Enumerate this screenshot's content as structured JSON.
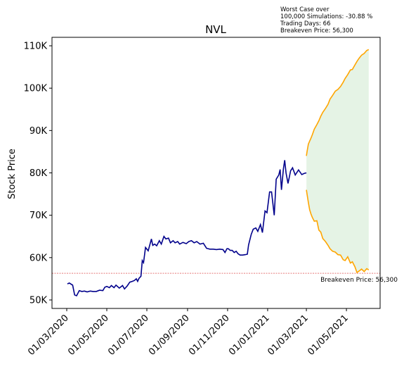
{
  "chart_data": {
    "type": "line",
    "title": "NVL",
    "xlabel": "",
    "ylabel": "Stock Price",
    "ylim": [
      48000,
      112000
    ],
    "y_ticks": [
      50000,
      60000,
      70000,
      80000,
      90000,
      100000,
      110000
    ],
    "y_tick_labels": [
      "50K",
      "60K",
      "70K",
      "80K",
      "90K",
      "100K",
      "110K"
    ],
    "x_tick_labels": [
      "01/03/2020",
      "01/05/2020",
      "01/07/2020",
      "01/09/2020",
      "01/11/2020",
      "01/01/2021",
      "01/03/2021",
      "01/05/2021"
    ],
    "grid": false,
    "annotation": {
      "lines": [
        "Worst Case over",
        "100,000 Simulations: -30.88 %",
        "Trading Days: 66",
        "Breakeven Price: 56,300"
      ]
    },
    "breakeven": {
      "value": 56300,
      "label": "Breakeven Price: 56,300",
      "color": "#d62728"
    },
    "colors": {
      "history": "#00008b",
      "forecast": "#ffa500",
      "fill": "#2ca02c"
    },
    "series": [
      {
        "x": [
          "2020-03-02",
          "2020-03-05",
          "2020-03-10",
          "2020-03-13",
          "2020-03-16",
          "2020-03-20",
          "2020-03-24",
          "2020-03-28",
          "2020-04-01",
          "2020-04-06",
          "2020-04-10",
          "2020-04-15",
          "2020-04-20",
          "2020-04-25",
          "2020-04-28",
          "2020-05-01",
          "2020-05-05",
          "2020-05-08",
          "2020-05-12",
          "2020-05-15",
          "2020-05-20",
          "2020-05-25",
          "2020-05-28",
          "2020-06-01",
          "2020-06-05",
          "2020-06-09",
          "2020-06-12",
          "2020-06-15",
          "2020-06-17",
          "2020-06-19",
          "2020-06-22",
          "2020-06-24",
          "2020-06-26",
          "2020-06-29",
          "2020-07-01",
          "2020-07-03",
          "2020-07-06",
          "2020-07-08",
          "2020-07-10",
          "2020-07-13",
          "2020-07-16",
          "2020-07-20",
          "2020-07-23",
          "2020-07-27",
          "2020-07-30",
          "2020-08-03",
          "2020-08-06",
          "2020-08-10",
          "2020-08-13",
          "2020-08-17",
          "2020-08-20",
          "2020-08-25",
          "2020-08-30",
          "2020-09-03",
          "2020-09-07",
          "2020-09-11",
          "2020-09-15",
          "2020-09-20",
          "2020-09-25",
          "2020-09-30",
          "2020-10-05",
          "2020-10-10",
          "2020-10-15",
          "2020-10-20",
          "2020-10-25",
          "2020-10-28",
          "2020-10-31",
          "2020-11-02",
          "2020-11-05",
          "2020-11-08",
          "2020-11-11",
          "2020-11-14",
          "2020-11-17",
          "2020-11-20",
          "2020-11-24",
          "2020-11-28",
          "2020-12-01",
          "2020-12-03",
          "2020-12-07",
          "2020-12-10",
          "2020-12-14",
          "2020-12-17",
          "2020-12-21",
          "2020-12-24",
          "2020-12-28",
          "2020-12-31",
          "2021-01-04",
          "2021-01-07",
          "2021-01-11",
          "2021-01-14",
          "2021-01-18",
          "2021-01-20",
          "2021-01-22",
          "2021-01-25",
          "2021-01-27",
          "2021-01-29",
          "2021-02-01",
          "2021-02-03",
          "2021-02-05",
          "2021-02-08",
          "2021-02-12",
          "2021-02-17",
          "2021-02-22",
          "2021-02-26",
          "2021-03-01"
        ],
        "values": [
          53800,
          54000,
          53500,
          51200,
          51000,
          52200,
          52000,
          52100,
          51900,
          52100,
          52000,
          52000,
          52300,
          52200,
          53000,
          53200,
          52900,
          53400,
          52900,
          53500,
          52800,
          53400,
          52600,
          53300,
          54200,
          54400,
          54600,
          55000,
          54400,
          55100,
          55600,
          59300,
          58800,
          62400,
          62000,
          61600,
          63300,
          64400,
          62900,
          63200,
          62800,
          64000,
          63200,
          65000,
          64400,
          64600,
          63500,
          64000,
          63500,
          63800,
          63200,
          63600,
          63300,
          63800,
          64000,
          63500,
          63800,
          63200,
          63400,
          62200,
          62000,
          62000,
          61900,
          62000,
          61900,
          61200,
          62100,
          62100,
          61700,
          61700,
          61200,
          61500,
          60900,
          60600,
          60600,
          60700,
          60800,
          63000,
          65500,
          66700,
          67000,
          66200,
          67800,
          65900,
          71000,
          70600,
          75500,
          75500,
          70000,
          78500,
          79500,
          80800,
          76000,
          81000,
          83000,
          80000,
          77500,
          79000,
          80500,
          81200,
          79500,
          80700,
          79600,
          79900,
          80000
        ],
        "name": ""
      },
      {
        "x": [
          "2021-03-01",
          "2021-03-02",
          "2021-03-04",
          "2021-03-06",
          "2021-03-08",
          "2021-03-10",
          "2021-03-13",
          "2021-03-17",
          "2021-03-20",
          "2021-03-23",
          "2021-03-26",
          "2021-03-30",
          "2021-04-03",
          "2021-04-06",
          "2021-04-10",
          "2021-04-14",
          "2021-04-18",
          "2021-04-22",
          "2021-04-26",
          "2021-04-29",
          "2021-05-03",
          "2021-05-07",
          "2021-05-10",
          "2021-05-14",
          "2021-05-17",
          "2021-05-20",
          "2021-05-24",
          "2021-05-28",
          "2021-06-01",
          "2021-06-04"
        ],
        "values": [
          84000,
          85000,
          86800,
          87500,
          88200,
          89000,
          90300,
          91400,
          92300,
          93400,
          94300,
          95200,
          96200,
          97400,
          98300,
          99300,
          99700,
          100400,
          101400,
          102300,
          103200,
          104300,
          104400,
          105500,
          106300,
          107000,
          107800,
          108200,
          108900,
          109100
        ],
        "name": ""
      },
      {
        "x": [
          "2021-03-01",
          "2021-03-02",
          "2021-03-04",
          "2021-03-06",
          "2021-03-08",
          "2021-03-10",
          "2021-03-13",
          "2021-03-17",
          "2021-03-20",
          "2021-03-23",
          "2021-03-26",
          "2021-03-30",
          "2021-04-03",
          "2021-04-06",
          "2021-04-10",
          "2021-04-14",
          "2021-04-18",
          "2021-04-22",
          "2021-04-26",
          "2021-04-29",
          "2021-05-03",
          "2021-05-07",
          "2021-05-10",
          "2021-05-14",
          "2021-05-17",
          "2021-05-20",
          "2021-05-24",
          "2021-05-28",
          "2021-06-01",
          "2021-06-04"
        ],
        "values": [
          76000,
          75000,
          73000,
          71300,
          70300,
          69500,
          68600,
          68700,
          66500,
          66000,
          64500,
          63800,
          62900,
          62100,
          61500,
          61300,
          60700,
          60600,
          59500,
          59300,
          60200,
          58700,
          59000,
          57800,
          56500,
          56800,
          57300,
          56700,
          57400,
          57100
        ],
        "name": ""
      }
    ]
  }
}
